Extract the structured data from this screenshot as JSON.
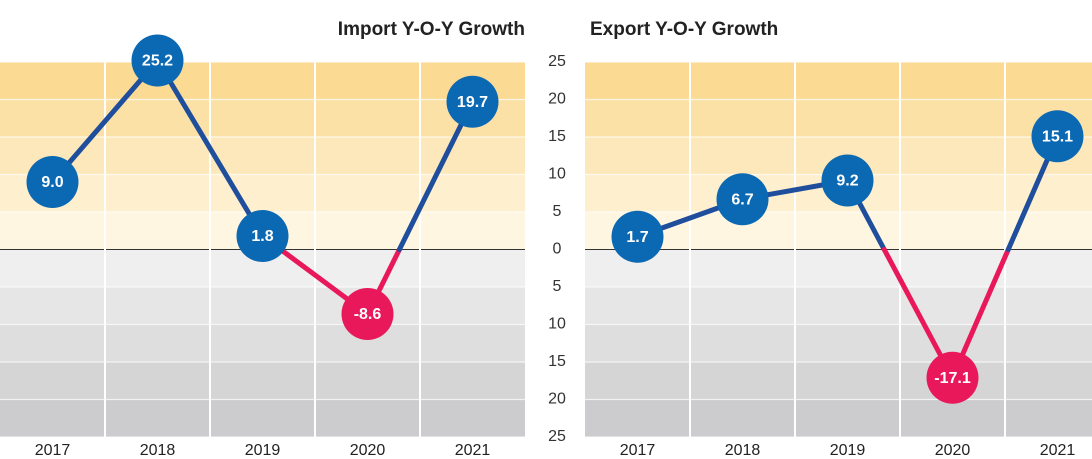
{
  "chart_data": [
    {
      "type": "line",
      "title": "Import Y-O-Y Growth",
      "categories": [
        "2017",
        "2018",
        "2019",
        "2020",
        "2021"
      ],
      "values": [
        9.0,
        25.2,
        1.8,
        -8.6,
        19.7
      ],
      "value_labels": [
        "9.0",
        "25.2",
        "1.8",
        "-8.6",
        "19.7"
      ],
      "color": "#1f4e9c",
      "negative_color": "#e8185a",
      "ylim": [
        -25,
        25
      ],
      "yticks": [
        25,
        20,
        15,
        10,
        5,
        0,
        {
          "value": -5,
          "label": "5"
        },
        {
          "value": -10,
          "label": "10"
        },
        {
          "value": -15,
          "label": "15"
        },
        {
          "value": -20,
          "label": "20"
        },
        {
          "value": -25,
          "label": "25"
        }
      ]
    },
    {
      "type": "line",
      "title": "Export Y-O-Y Growth",
      "categories": [
        "2017",
        "2018",
        "2019",
        "2020",
        "2021"
      ],
      "values": [
        1.7,
        6.7,
        9.2,
        -17.1,
        15.1
      ],
      "value_labels": [
        "1.7",
        "6.7",
        "9.2",
        "-17.1",
        "15.1"
      ],
      "color": "#1f4e9c",
      "negative_color": "#e8185a",
      "ylim": [
        -25,
        25
      ]
    }
  ]
}
